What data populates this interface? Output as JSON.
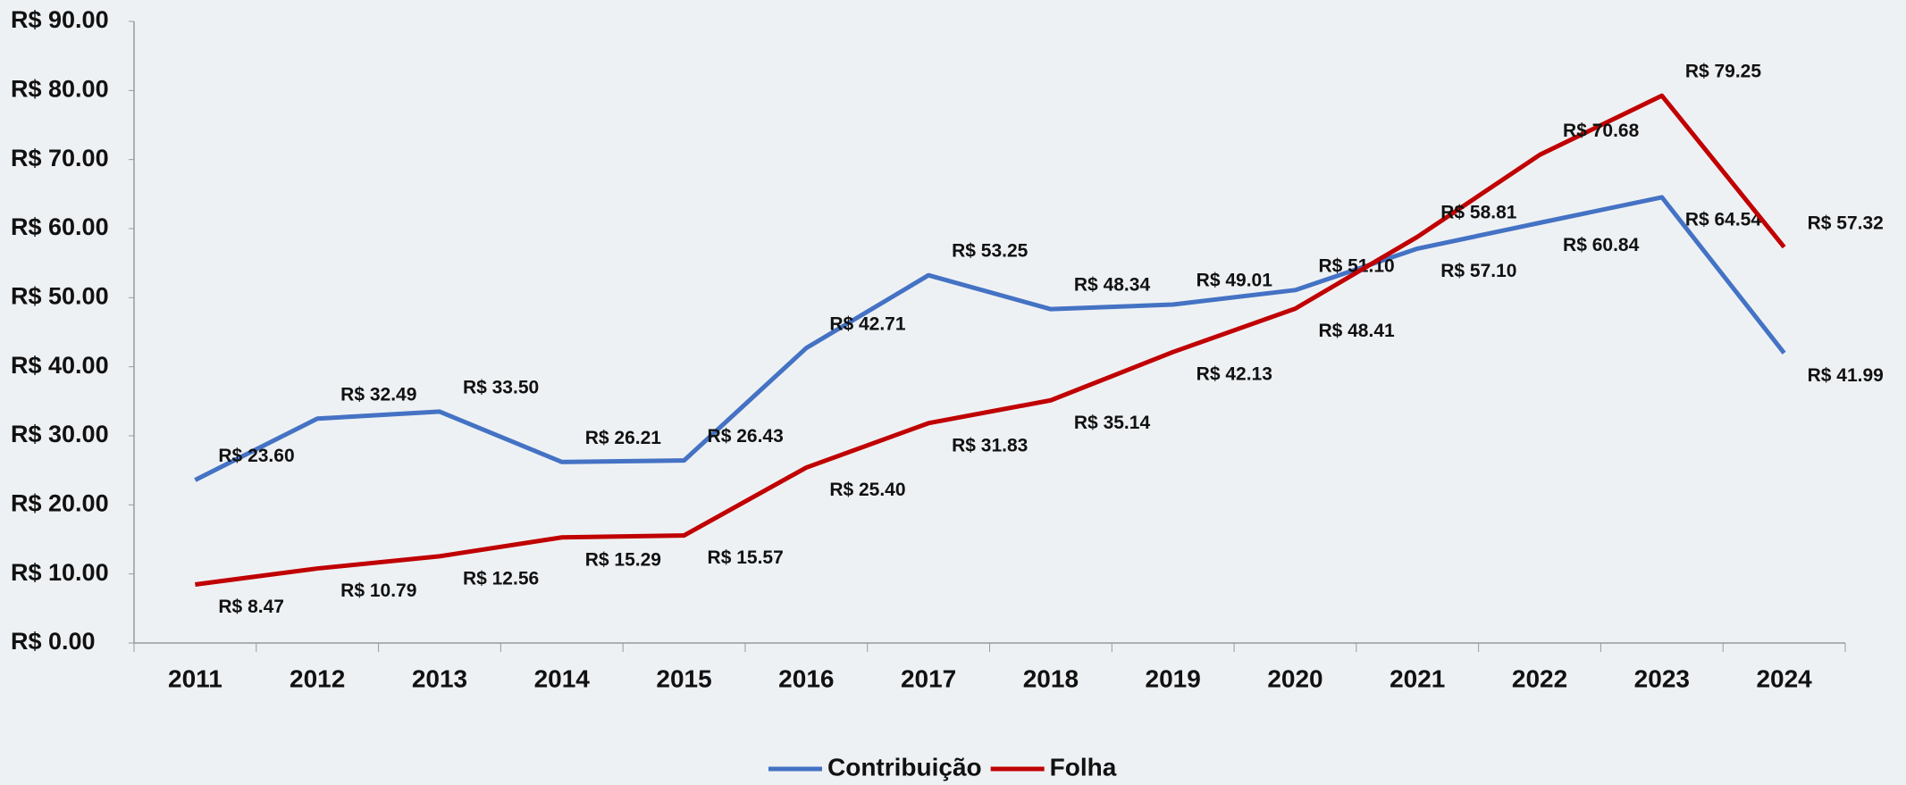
{
  "chart_data": {
    "type": "line",
    "categories": [
      "2011",
      "2012",
      "2013",
      "2014",
      "2015",
      "2016",
      "2017",
      "2018",
      "2019",
      "2020",
      "2021",
      "2022",
      "2023",
      "2024"
    ],
    "series": [
      {
        "name": "Contribuição",
        "color": "#4472c4",
        "values": [
          23.6,
          32.49,
          33.5,
          26.21,
          26.43,
          42.71,
          53.25,
          48.34,
          49.01,
          51.1,
          57.1,
          60.84,
          64.54,
          41.99
        ],
        "value_labels": [
          "R$ 23.60",
          "R$ 32.49",
          "R$ 33.50",
          "R$ 26.21",
          "R$ 26.43",
          "R$ 42.71",
          "R$ 53.25",
          "R$ 48.34",
          "R$ 49.01",
          "R$ 51.10",
          "R$ 57.10",
          "R$ 60.84",
          "R$ 64.54",
          "R$ 41.99"
        ]
      },
      {
        "name": "Folha",
        "color": "#c00000",
        "values": [
          8.47,
          10.79,
          12.56,
          15.29,
          15.57,
          25.4,
          31.83,
          35.14,
          42.13,
          48.41,
          58.81,
          70.68,
          79.25,
          57.32
        ],
        "value_labels": [
          "R$ 8.47",
          "R$ 10.79",
          "R$ 12.56",
          "R$ 15.29",
          "R$ 15.57",
          "R$ 25.40",
          "R$ 31.83",
          "R$ 35.14",
          "R$ 42.13",
          "R$ 48.41",
          "R$ 58.81",
          "R$ 70.68",
          "R$ 79.25",
          "R$ 57.32"
        ]
      }
    ],
    "ylim": [
      0,
      90
    ],
    "yticks": [
      {
        "value": 0,
        "label": "R$ 0.00"
      },
      {
        "value": 10,
        "label": "R$ 10.00"
      },
      {
        "value": 20,
        "label": "R$ 20.00"
      },
      {
        "value": 30,
        "label": "R$ 30.00"
      },
      {
        "value": 40,
        "label": "R$ 40.00"
      },
      {
        "value": 50,
        "label": "R$ 50.00"
      },
      {
        "value": 60,
        "label": "R$ 60.00"
      },
      {
        "value": 70,
        "label": "R$ 70.00"
      },
      {
        "value": 80,
        "label": "R$ 80.00"
      },
      {
        "value": 90,
        "label": "R$ 90.00"
      }
    ],
    "legend": "bottom"
  }
}
